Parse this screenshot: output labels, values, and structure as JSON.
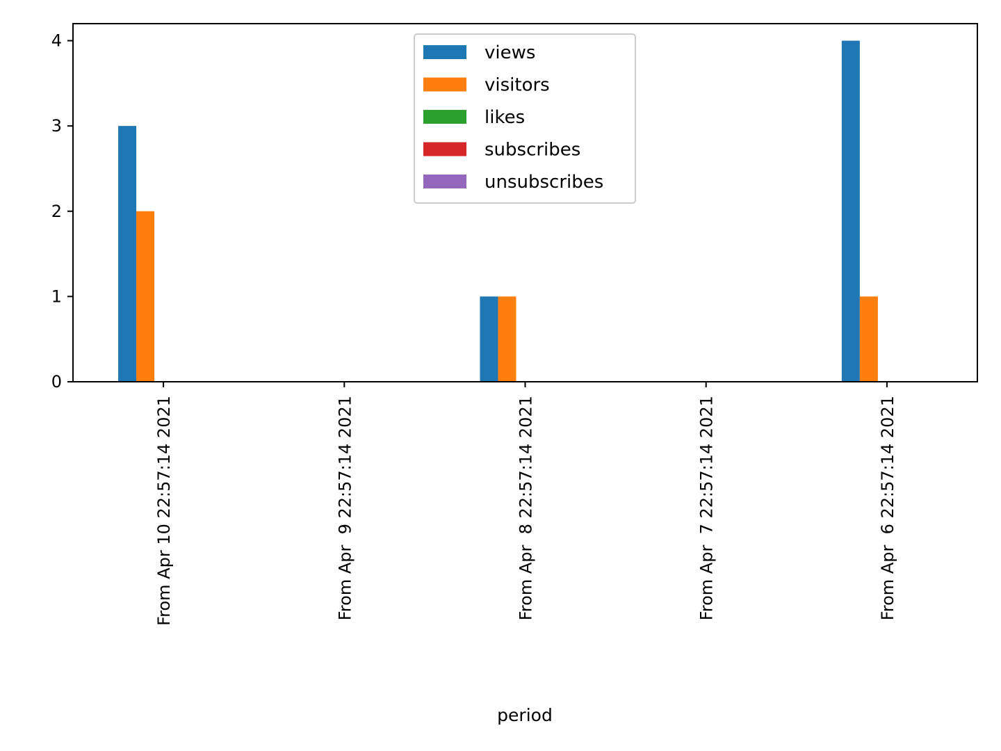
{
  "chart_data": {
    "type": "bar",
    "xlabel": "period",
    "ylabel": "",
    "ylim": [
      0,
      4.2
    ],
    "yticks": [
      0,
      1,
      2,
      3,
      4
    ],
    "grid": false,
    "legend_position": "upper-center",
    "categories": [
      "From Apr 10 22:57:14 2021",
      "From Apr  9 22:57:14 2021",
      "From Apr  8 22:57:14 2021",
      "From Apr  7 22:57:14 2021",
      "From Apr  6 22:57:14 2021"
    ],
    "series": [
      {
        "name": "views",
        "color": "#1f77b4",
        "values": [
          3,
          0,
          1,
          0,
          4
        ]
      },
      {
        "name": "visitors",
        "color": "#ff7f0e",
        "values": [
          2,
          0,
          1,
          0,
          1
        ]
      },
      {
        "name": "likes",
        "color": "#2ca02c",
        "values": [
          0,
          0,
          0,
          0,
          0
        ]
      },
      {
        "name": "subscribes",
        "color": "#d62728",
        "values": [
          0,
          0,
          0,
          0,
          0
        ]
      },
      {
        "name": "unsubscribes",
        "color": "#9467bd",
        "values": [
          0,
          0,
          0,
          0,
          0
        ]
      }
    ]
  }
}
